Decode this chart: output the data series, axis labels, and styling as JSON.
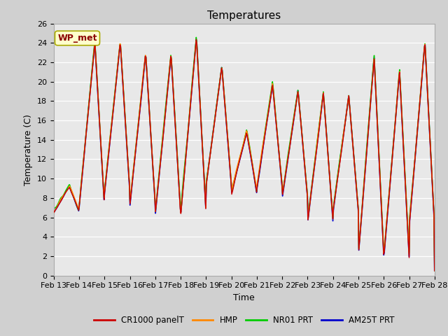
{
  "title": "Temperatures",
  "xlabel": "Time",
  "ylabel": "Temperature (C)",
  "ylim": [
    0,
    26
  ],
  "annotation": "WP_met",
  "xtick_labels": [
    "Feb 13",
    "Feb 14",
    "Feb 15",
    "Feb 16",
    "Feb 17",
    "Feb 18",
    "Feb 19",
    "Feb 20",
    "Feb 21",
    "Feb 22",
    "Feb 23",
    "Feb 24",
    "Feb 25",
    "Feb 26",
    "Feb 27",
    "Feb 28"
  ],
  "legend_entries": [
    "CR1000 panelT",
    "HMP",
    "NR01 PRT",
    "AM25T PRT"
  ],
  "legend_colors": [
    "#cc0000",
    "#ff8800",
    "#00cc00",
    "#0000cc"
  ],
  "title_fontsize": 11,
  "axis_fontsize": 9,
  "tick_fontsize": 8,
  "day_peaks": [
    9.2,
    24.0,
    24.0,
    22.8,
    22.7,
    24.5,
    21.5,
    14.8,
    19.7,
    19.0,
    18.8,
    18.5,
    22.5,
    21.0,
    24.0
  ],
  "day_valleys": [
    6.5,
    7.0,
    8.5,
    7.2,
    6.3,
    6.3,
    9.2,
    8.5,
    9.0,
    8.0,
    5.5,
    6.5,
    2.0,
    1.8,
    5.0
  ],
  "peak_phase": [
    0.62,
    0.62,
    0.62,
    0.62,
    0.62,
    0.62,
    0.62,
    0.6,
    0.62,
    0.62,
    0.62,
    0.62,
    0.62,
    0.62,
    0.62
  ],
  "n_days": 15,
  "n_points_per_day": 48
}
